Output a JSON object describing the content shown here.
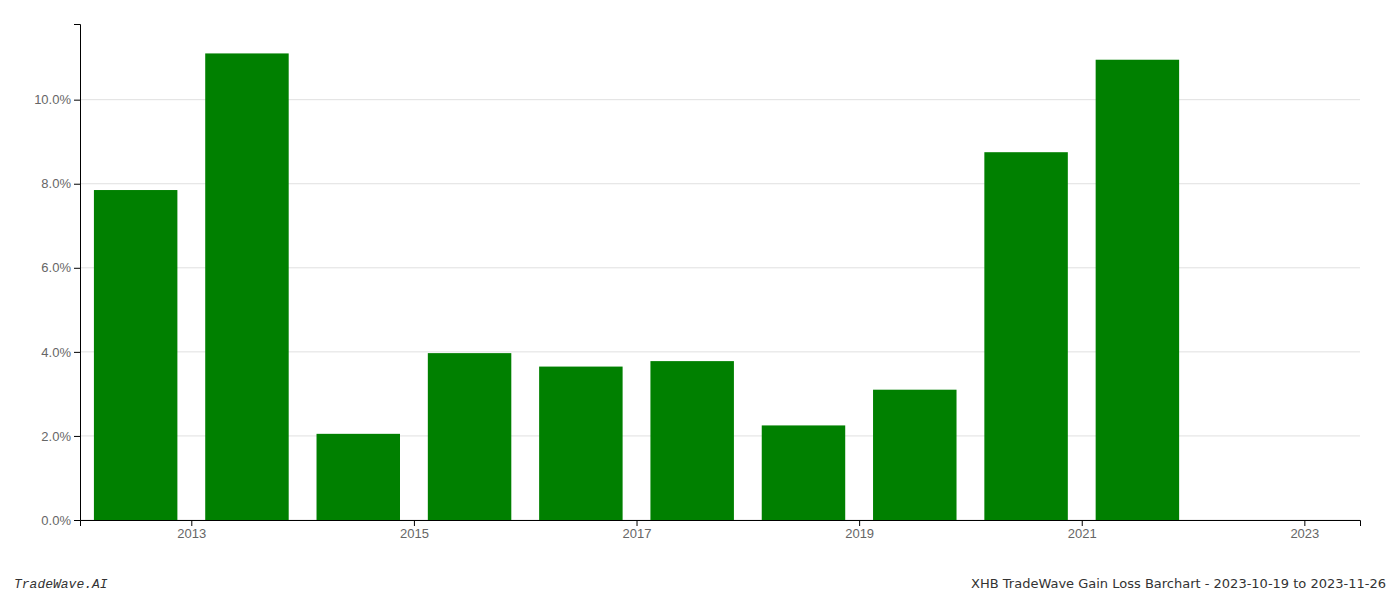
{
  "chart_data": {
    "type": "bar",
    "x": [
      2013,
      2014,
      2015,
      2016,
      2017,
      2018,
      2019,
      2020,
      2021,
      2022
    ],
    "values": [
      0.0785,
      0.111,
      0.0205,
      0.0397,
      0.0365,
      0.0378,
      0.0225,
      0.031,
      0.0875,
      0.1095
    ],
    "color": "#008000",
    "xlim": [
      2012.5,
      2024.0
    ],
    "xticks": [
      {
        "value": 2013.5,
        "label": "2013"
      },
      {
        "value": 2015.5,
        "label": "2015"
      },
      {
        "value": 2017.5,
        "label": "2017"
      },
      {
        "value": 2019.5,
        "label": "2019"
      },
      {
        "value": 2021.5,
        "label": "2021"
      },
      {
        "value": 2023.5,
        "label": "2023"
      }
    ],
    "ylim": [
      0,
      0.118
    ],
    "yticks": [
      {
        "value": 0.0,
        "label": "0.0%"
      },
      {
        "value": 0.02,
        "label": "2.0%"
      },
      {
        "value": 0.04,
        "label": "4.0%"
      },
      {
        "value": 0.06,
        "label": "6.0%"
      },
      {
        "value": 0.08,
        "label": "8.0%"
      },
      {
        "value": 0.1,
        "label": "10.0%"
      }
    ],
    "grid": true,
    "annotations": [
      "TradeWave.AI",
      "XHB TradeWave Gain Loss Barchart - 2023-10-19 to 2023-11-26"
    ]
  }
}
